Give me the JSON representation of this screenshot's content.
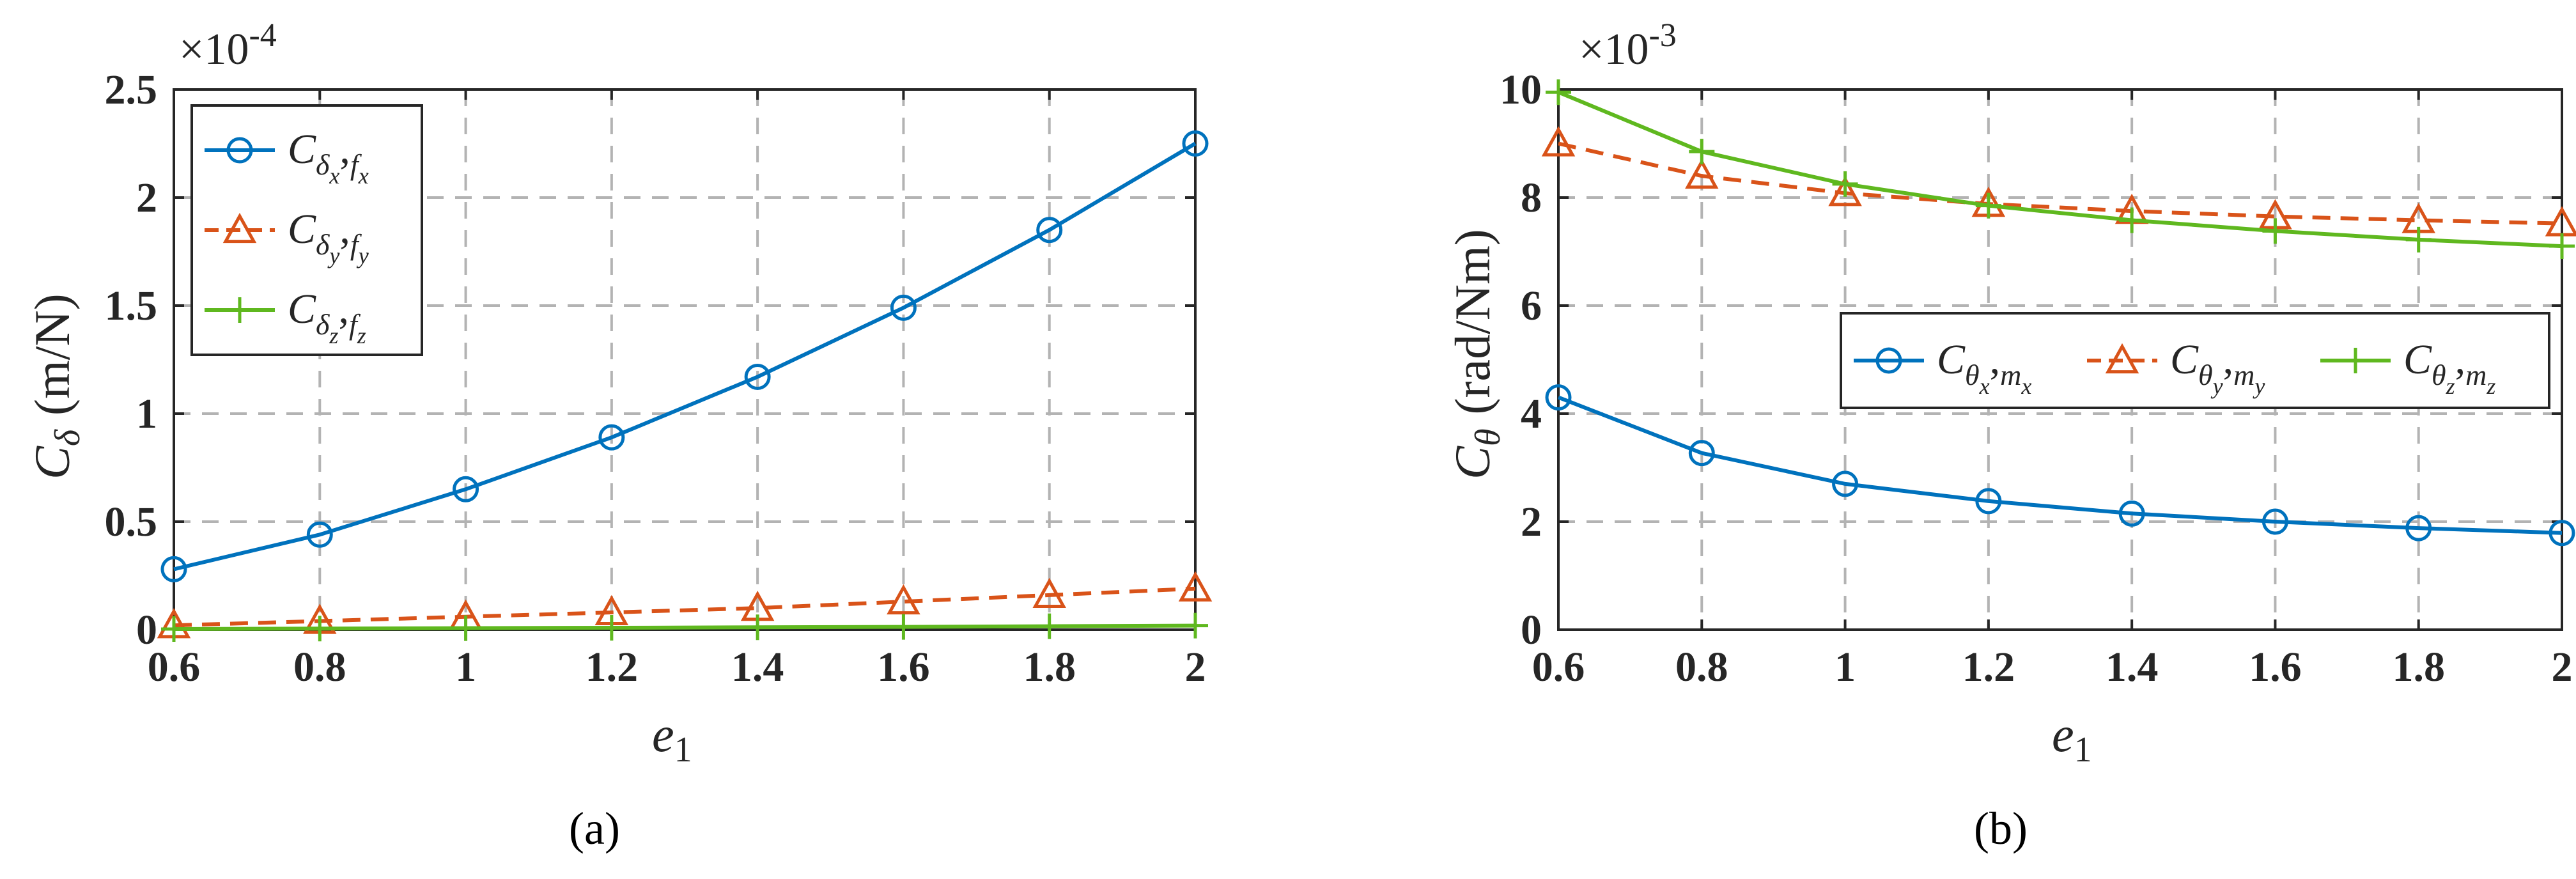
{
  "chart_data": [
    {
      "type": "line",
      "caption": "(a)",
      "xlabel": "e",
      "xlabel_sub": "1",
      "ylabel": "C",
      "ylabel_sub": "δ",
      "ylabel_unit": "(m/N)",
      "multiplier_base": "×10",
      "multiplier_exp": "-4",
      "xlim": [
        0.6,
        2
      ],
      "ylim": [
        0,
        2.5
      ],
      "xticks": [
        "0.6",
        "0.8",
        "1",
        "1.2",
        "1.4",
        "1.6",
        "1.8",
        "2"
      ],
      "yticks": [
        "0",
        "0.5",
        "1",
        "1.5",
        "2",
        "2.5"
      ],
      "x": [
        0.6,
        0.8,
        1.0,
        1.2,
        1.4,
        1.6,
        1.8,
        2.0
      ],
      "legend_position": "top-left",
      "series": [
        {
          "name": "C_{δx},f_x",
          "label_main": "C",
          "label_sub1": "δ",
          "label_sub2": "x",
          "label_mid": ",",
          "label_sub3": "f",
          "label_sub4": "x",
          "color": "#0072BD",
          "marker": "circle",
          "dash": "solid",
          "values": [
            0.28,
            0.44,
            0.65,
            0.89,
            1.17,
            1.49,
            1.85,
            2.25
          ]
        },
        {
          "name": "C_{δy},f_y",
          "label_main": "C",
          "label_sub1": "δ",
          "label_sub2": "y",
          "label_mid": ",",
          "label_sub3": "f",
          "label_sub4": "y",
          "color": "#D95319",
          "marker": "triangle",
          "dash": "dashed",
          "values": [
            0.02,
            0.04,
            0.06,
            0.08,
            0.1,
            0.13,
            0.16,
            0.19
          ]
        },
        {
          "name": "C_{δz},f_z",
          "label_main": "C",
          "label_sub1": "δ",
          "label_sub2": "z",
          "label_mid": ",",
          "label_sub3": "f",
          "label_sub4": "z",
          "color": "#5FB81F",
          "marker": "plus",
          "dash": "solid",
          "values": [
            0.003,
            0.005,
            0.007,
            0.009,
            0.011,
            0.013,
            0.016,
            0.019
          ]
        }
      ]
    },
    {
      "type": "line",
      "caption": "(b)",
      "xlabel": "e",
      "xlabel_sub": "1",
      "ylabel": "C",
      "ylabel_sub": "θ",
      "ylabel_unit": "(rad/Nm)",
      "multiplier_base": "×10",
      "multiplier_exp": "-3",
      "xlim": [
        0.6,
        2
      ],
      "ylim": [
        0,
        10
      ],
      "xticks": [
        "0.6",
        "0.8",
        "1",
        "1.2",
        "1.4",
        "1.6",
        "1.8",
        "2"
      ],
      "yticks": [
        "0",
        "2",
        "4",
        "6",
        "8",
        "10"
      ],
      "x": [
        0.6,
        0.8,
        1.0,
        1.2,
        1.4,
        1.6,
        1.8,
        2.0
      ],
      "legend_position": "center-right",
      "series": [
        {
          "name": "C_{θx},m_x",
          "label_main": "C",
          "label_sub1": "θ",
          "label_sub2": "x",
          "label_mid": ",",
          "label_sub3": "m",
          "label_sub4": "x",
          "color": "#0072BD",
          "marker": "circle",
          "dash": "solid",
          "values": [
            4.3,
            3.27,
            2.7,
            2.38,
            2.15,
            2.0,
            1.88,
            1.79
          ]
        },
        {
          "name": "C_{θy},m_y",
          "label_main": "C",
          "label_sub1": "θ",
          "label_sub2": "y",
          "label_mid": ",",
          "label_sub3": "m",
          "label_sub4": "y",
          "color": "#D95319",
          "marker": "triangle",
          "dash": "dashed",
          "values": [
            9.0,
            8.4,
            8.08,
            7.88,
            7.75,
            7.65,
            7.58,
            7.52
          ]
        },
        {
          "name": "C_{θz},m_z",
          "label_main": "C",
          "label_sub1": "θ",
          "label_sub2": "z",
          "label_mid": ",",
          "label_sub3": "m",
          "label_sub4": "z",
          "color": "#5FB81F",
          "marker": "plus",
          "dash": "solid",
          "values": [
            9.95,
            8.85,
            8.25,
            7.85,
            7.58,
            7.38,
            7.22,
            7.1
          ]
        }
      ]
    }
  ]
}
